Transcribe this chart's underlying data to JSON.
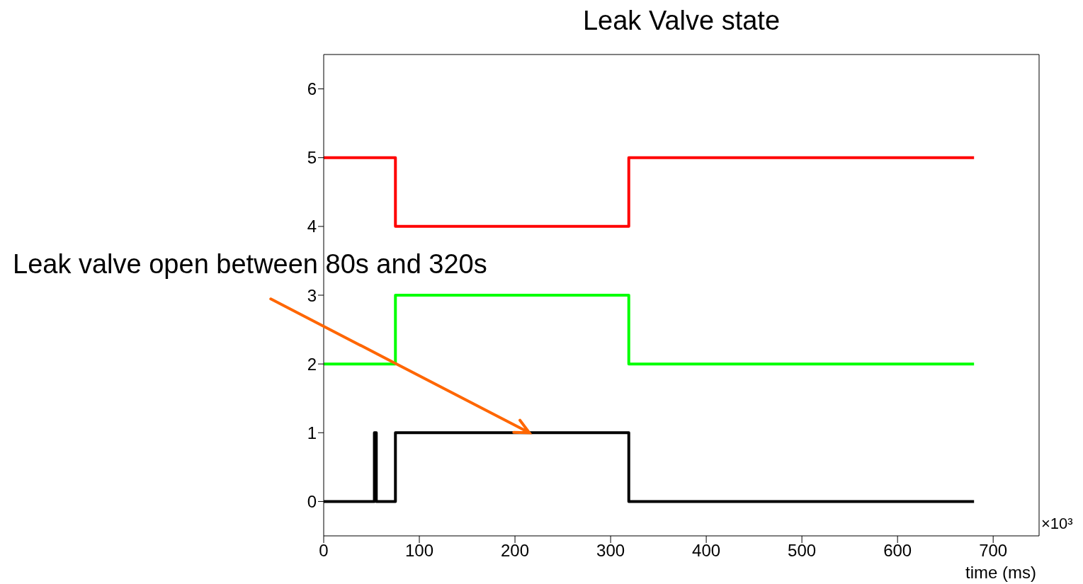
{
  "chart_data": {
    "type": "step",
    "title": "Leak Valve state",
    "xlabel": "time (ms)",
    "xlim": [
      0,
      748
    ],
    "xticks": [
      0,
      100,
      200,
      300,
      400,
      500,
      600,
      700
    ],
    "ylim": [
      -0.5,
      6.5
    ],
    "yticks": [
      0,
      1,
      2,
      3,
      4,
      5,
      6
    ],
    "grid": false,
    "legend": false,
    "marker": "none",
    "line_style": "solid",
    "series": [
      {
        "color": "#ff0000",
        "x": [
          0,
          75,
          319,
          680
        ],
        "values": [
          5,
          4,
          5,
          5
        ]
      },
      {
        "color": "#00ff00",
        "x": [
          0,
          75,
          319,
          680
        ],
        "values": [
          2,
          3,
          2,
          2
        ]
      },
      {
        "color": "#000000",
        "x": [
          0,
          53,
          55,
          75,
          319,
          680
        ],
        "values": [
          0,
          1,
          0,
          1,
          0,
          0
        ]
      }
    ],
    "annotations": [
      {
        "text": "Leak valve open between 80s and 320s",
        "x": 215,
        "y": 1
      },
      "×10³"
    ]
  }
}
